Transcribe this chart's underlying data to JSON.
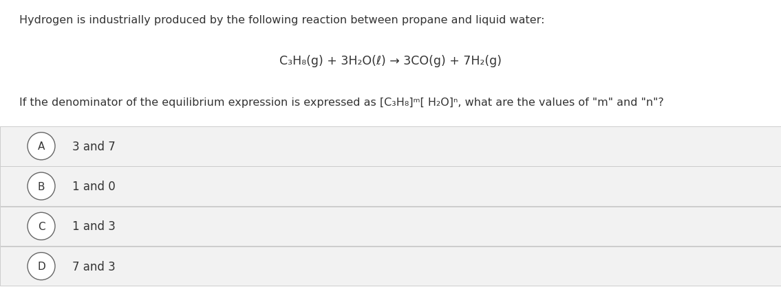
{
  "background_color": "#ffffff",
  "intro_text": "Hydrogen is industrially produced by the following reaction between propane and liquid water:",
  "equation": "C₃H₈(g) + 3H₂O(ℓ) → 3CO(g) + 7H₂(g)",
  "question_text": "If the denominator of the equilibrium expression is expressed as [C₃H₈]ᵐ[ H₂O]ⁿ, what are the values of \"m\" and \"n\"?",
  "options": [
    {
      "label": "A",
      "text": "3 and 7"
    },
    {
      "label": "B",
      "text": "1 and 0"
    },
    {
      "label": "C",
      "text": "1 and 3"
    },
    {
      "label": "D",
      "text": "7 and 3"
    }
  ],
  "option_box_color": "#f2f2f2",
  "option_box_border": "#cccccc",
  "text_color": "#333333",
  "circle_color": "#ffffff",
  "circle_edge_color": "#666666",
  "font_size_intro": 11.5,
  "font_size_equation": 12.5,
  "font_size_question": 11.5,
  "font_size_option": 12,
  "font_size_label": 11
}
